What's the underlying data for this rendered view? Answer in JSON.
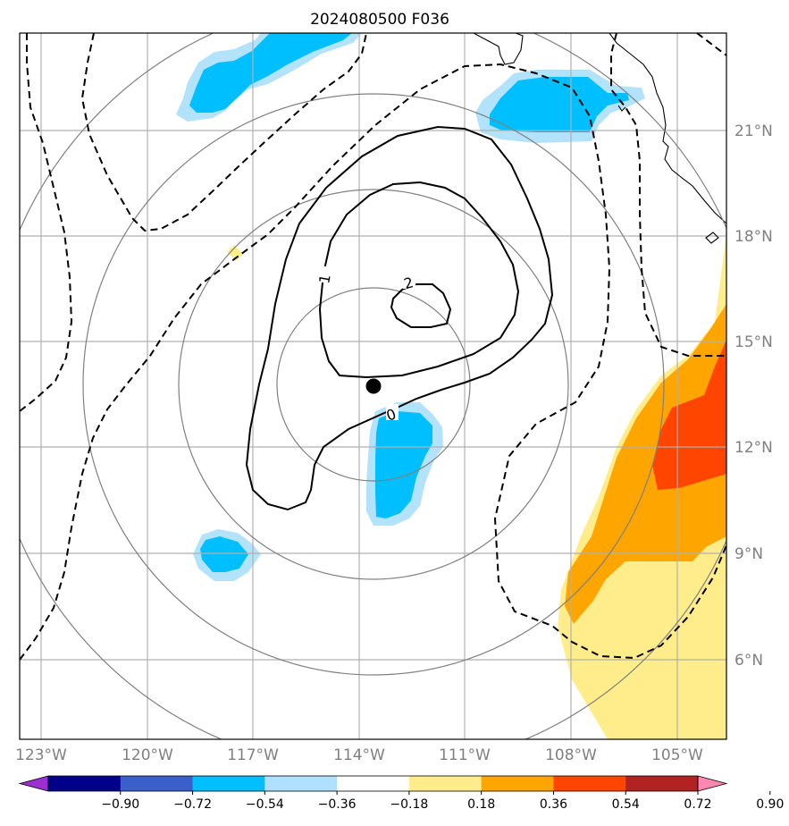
{
  "title": "2024080500 F036",
  "map": {
    "lat_labels": [
      "21°N",
      "18°N",
      "15°N",
      "12°N",
      "9°N",
      "6°N"
    ],
    "lon_labels": [
      "123°W",
      "120°W",
      "117°W",
      "114°W",
      "111°W",
      "108°W",
      "105°W"
    ],
    "contour_labels": [
      "1",
      "2",
      "0"
    ],
    "center_marker": "storm-center-dot",
    "range_rings": 4
  },
  "colorbar": {
    "ticks": [
      "−0.90",
      "−0.72",
      "−0.54",
      "−0.36",
      "−0.18",
      "0.18",
      "0.36",
      "0.54",
      "0.72",
      "0.90"
    ],
    "colors": [
      "#9b30d0",
      "#00008b",
      "#3a5fcd",
      "#00bfff",
      "#b0e0ff",
      "#ffffff",
      "#ffec8b",
      "#ffa500",
      "#ff4500",
      "#b22222",
      "#ff88b0"
    ]
  },
  "colors": {
    "light_blue": "#b3e2fb",
    "blue": "#00bfff",
    "yellow": "#ffec8b",
    "orange": "#ffa500",
    "red": "#ff4500",
    "grid": "#b0b0b0",
    "ring": "#808080"
  }
}
